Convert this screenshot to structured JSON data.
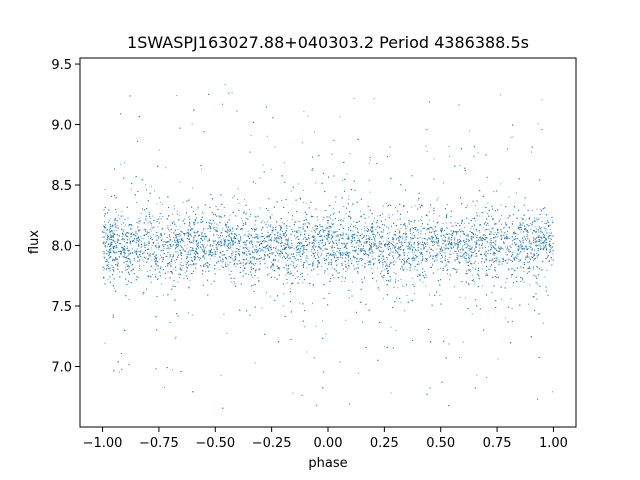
{
  "chart_data": {
    "type": "scatter",
    "title": "1SWASPJ163027.88+040303.2 Period 4386388.5s",
    "xlabel": "phase",
    "ylabel": "flux",
    "xlim": [
      -1.1,
      1.1
    ],
    "ylim": [
      6.5,
      9.55
    ],
    "xticks": [
      -1.0,
      -0.75,
      -0.5,
      -0.25,
      0.0,
      0.25,
      0.5,
      0.75,
      1.0
    ],
    "xtick_labels": [
      "−1.00",
      "−0.75",
      "−0.50",
      "−0.25",
      "0.00",
      "0.25",
      "0.50",
      "0.75",
      "1.00"
    ],
    "yticks": [
      7.0,
      7.5,
      8.0,
      8.5,
      9.0,
      9.5
    ],
    "ytick_labels": [
      "7.0",
      "7.5",
      "8.0",
      "8.5",
      "9.0",
      "9.5"
    ],
    "grid": false,
    "legend": "none",
    "marker_color": "#1f77b4",
    "series": [
      {
        "x_range": [
          -1.0,
          1.0
        ],
        "flux_center": 8.0,
        "flux_core_range": [
          7.7,
          8.3
        ],
        "flux_full_range": [
          6.65,
          9.42
        ],
        "profile": [
          {
            "phase": -1.0,
            "flux": 8.0
          },
          {
            "phase": -0.75,
            "flux": 8.0
          },
          {
            "phase": -0.5,
            "flux": 8.0
          },
          {
            "phase": -0.25,
            "flux": 8.0
          },
          {
            "phase": 0.0,
            "flux": 8.0
          },
          {
            "phase": 0.25,
            "flux": 8.0
          },
          {
            "phase": 0.5,
            "flux": 8.0
          },
          {
            "phase": 0.75,
            "flux": 8.0
          },
          {
            "phase": 1.0,
            "flux": 8.0
          }
        ]
      }
    ]
  }
}
